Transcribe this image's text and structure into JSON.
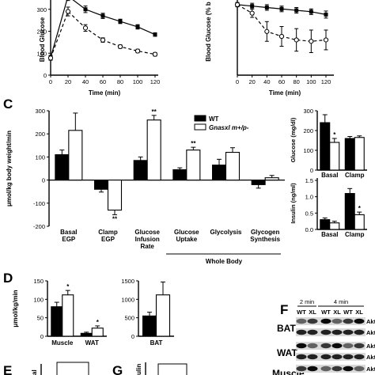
{
  "chart_data": [
    {
      "id": "A",
      "type": "line",
      "xlabel": "Time (min)",
      "ylabel": "Blood Glucose (mg/dl)",
      "ylabel_visible": "Blood Glucose",
      "xticks": [
        "0",
        "20",
        "40",
        "60",
        "80",
        "100",
        "120"
      ],
      "x": [
        0,
        20,
        40,
        60,
        80,
        100,
        120
      ],
      "xlim": [
        0,
        120
      ],
      "ylim": [
        0,
        400
      ],
      "series": [
        {
          "style": "filled-square-solid",
          "values": [
            80,
            360,
            300,
            270,
            245,
            220,
            185
          ],
          "errors": [
            10,
            20,
            15,
            12,
            10,
            10,
            8
          ]
        },
        {
          "style": "open-circle-dashed",
          "values": [
            78,
            290,
            215,
            160,
            130,
            110,
            95
          ],
          "errors": [
            10,
            20,
            15,
            10,
            8,
            8,
            8
          ]
        }
      ]
    },
    {
      "id": "B",
      "type": "line",
      "xlabel": "Time (min)",
      "ylabel_visible": "Blood Glucose (% b",
      "xticks": [
        "0",
        "20",
        "40",
        "60",
        "80",
        "100",
        "120"
      ],
      "x": [
        0,
        20,
        40,
        60,
        80,
        100,
        120
      ],
      "xlim": [
        0,
        120
      ],
      "ylim": [
        0,
        110
      ],
      "series": [
        {
          "style": "filled-square-solid",
          "values": [
            100,
            98,
            96,
            94,
            92,
            90,
            86
          ],
          "errors": [
            3,
            4,
            4,
            4,
            4,
            4,
            5
          ]
        },
        {
          "style": "open-circle-dashed",
          "values": [
            100,
            88,
            62,
            55,
            50,
            48,
            50
          ],
          "errors": [
            3,
            6,
            14,
            14,
            16,
            16,
            14
          ]
        }
      ]
    },
    {
      "id": "C",
      "type": "bar",
      "ylabel": "μmol/kg body weight/min",
      "yticks": [
        "-200",
        "-100",
        "0",
        "100",
        "200",
        "300"
      ],
      "ylim": [
        -200,
        300
      ],
      "categories": [
        [
          "Basal",
          "EGP"
        ],
        [
          "Clamp",
          "EGP"
        ],
        [
          "Glucose",
          "Infusion",
          "Rate"
        ],
        [
          "Glucose",
          "Uptake"
        ],
        [
          "Glycolysis"
        ],
        [
          "Glycogen",
          "Synthesis"
        ]
      ],
      "group_label": "Whole Body",
      "legend": [
        "WT",
        "Gnasxl m+/p-"
      ],
      "legend_position": "top-right",
      "series": [
        {
          "name": "WT",
          "color": "#000000",
          "values": [
            110,
            -40,
            85,
            45,
            65,
            -20
          ],
          "errors": [
            20,
            12,
            15,
            8,
            25,
            15
          ]
        },
        {
          "name": "Gnasxl m+/p-",
          "color": "#ffffff",
          "values": [
            215,
            -130,
            260,
            130,
            120,
            10
          ],
          "errors": [
            75,
            20,
            20,
            12,
            20,
            10
          ]
        }
      ],
      "annotations": [
        {
          "category": 1,
          "series": 1,
          "text": "**"
        },
        {
          "category": 2,
          "series": 1,
          "text": "**"
        },
        {
          "category": 3,
          "series": 1,
          "text": "**"
        }
      ]
    },
    {
      "id": "C-glucose",
      "type": "bar",
      "ylabel": "Glucose (mg/dl)",
      "yticks": [
        "0",
        "100",
        "200",
        "300"
      ],
      "ylim": [
        0,
        300
      ],
      "categories": [
        "Basal",
        "Clamp"
      ],
      "series": [
        {
          "name": "WT",
          "color": "#000000",
          "values": [
            240,
            160
          ],
          "errors": [
            40,
            10
          ]
        },
        {
          "name": "Gnasxl m+/p-",
          "color": "#ffffff",
          "values": [
            140,
            165
          ],
          "errors": [
            20,
            8
          ]
        }
      ],
      "annotations": [
        {
          "category": 0,
          "series": 1,
          "text": "*"
        }
      ]
    },
    {
      "id": "C-insulin",
      "type": "bar",
      "ylabel": "Insulin (ng/ml)",
      "yticks": [
        "0.0",
        "0.5",
        "1.0",
        "1.5"
      ],
      "ylim": [
        0,
        1.5
      ],
      "categories": [
        "Basal",
        "Clamp"
      ],
      "series": [
        {
          "name": "WT",
          "color": "#000000",
          "values": [
            0.3,
            1.1
          ],
          "errors": [
            0.05,
            0.15
          ]
        },
        {
          "name": "Gnasxl m+/p-",
          "color": "#ffffff",
          "values": [
            0.2,
            0.45
          ],
          "errors": [
            0.05,
            0.08
          ]
        }
      ],
      "annotations": [
        {
          "category": 1,
          "series": 1,
          "text": "*"
        }
      ]
    },
    {
      "id": "D",
      "type": "bar",
      "ylabel": "μmol/kg/min",
      "yticks": [
        "0",
        "50",
        "100",
        "150"
      ],
      "ylim": [
        0,
        150
      ],
      "categories": [
        "Muscle",
        "WAT"
      ],
      "series": [
        {
          "name": "WT",
          "color": "#000000",
          "values": [
            80,
            8
          ],
          "errors": [
            12,
            3
          ]
        },
        {
          "name": "Gnasxl m+/p-",
          "color": "#ffffff",
          "values": [
            112,
            22
          ],
          "errors": [
            12,
            6
          ]
        }
      ],
      "annotations": [
        {
          "category": 0,
          "series": 1,
          "text": "*"
        },
        {
          "category": 1,
          "series": 1,
          "text": "*"
        }
      ]
    },
    {
      "id": "D-BAT",
      "type": "bar",
      "yticks": [
        "0",
        "500",
        "1000",
        "1500"
      ],
      "ylim": [
        0,
        1500
      ],
      "categories": [
        "BAT"
      ],
      "series": [
        {
          "name": "WT",
          "color": "#000000",
          "values": [
            550
          ],
          "errors": [
            100
          ]
        },
        {
          "name": "Gnasxl m+/p-",
          "color": "#ffffff",
          "values": [
            1120
          ],
          "errors": [
            350
          ]
        }
      ]
    }
  ],
  "panels": {
    "C": "C",
    "D": "D",
    "E": "E",
    "F": "F",
    "G": "G"
  },
  "panel_f": {
    "time_headers": [
      "2 min",
      "4 min"
    ],
    "lane_labels": [
      "WT",
      "XL",
      "WT",
      "XL",
      "WT",
      "XL"
    ],
    "tissues": [
      "BAT",
      "WAT",
      "Muscle"
    ],
    "bands": [
      "Akt-P",
      "Akt",
      "Akt-P",
      "Akt",
      "Akt-P"
    ]
  },
  "partial_axis_text": {
    "E": "al",
    "G": "ulin"
  }
}
